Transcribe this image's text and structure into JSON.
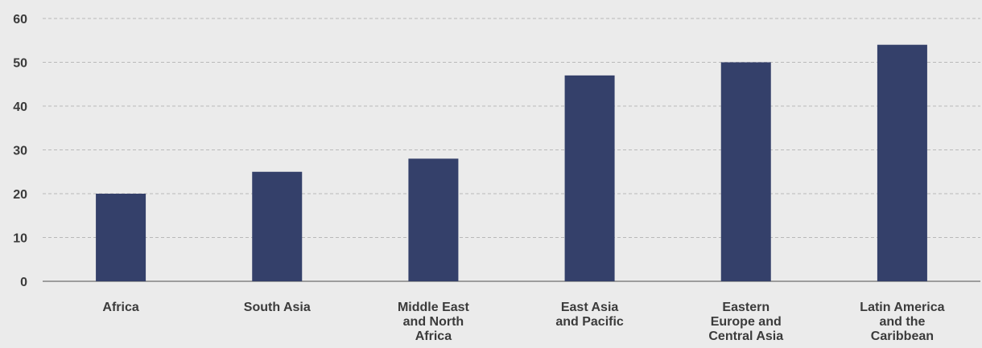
{
  "chart_data": {
    "type": "bar",
    "categories": [
      "Africa",
      "South Asia",
      "Middle East and North Africa",
      "East Asia and Pacific",
      "Eastern Europe and Central Asia",
      "Latin America and the Caribbean"
    ],
    "category_label_lines": [
      [
        "Africa"
      ],
      [
        "South Asia"
      ],
      [
        "Middle East",
        "and North",
        "Africa"
      ],
      [
        "East Asia",
        "and Pacific"
      ],
      [
        "Eastern",
        "Europe and",
        "Central Asia"
      ],
      [
        "Latin America",
        "and the",
        "Caribbean"
      ]
    ],
    "values": [
      20,
      25,
      28,
      47,
      50,
      54
    ],
    "ylim": [
      0,
      60
    ],
    "yticks": [
      0,
      10,
      20,
      30,
      40,
      50,
      60
    ],
    "title": "",
    "xlabel": "",
    "ylabel": "",
    "grid": true,
    "colors": {
      "bar": "#34406a",
      "background": "#ebebeb",
      "grid": "#b9b9b9",
      "axis": "#6d6d6d",
      "text": "#3b3b3b"
    }
  }
}
